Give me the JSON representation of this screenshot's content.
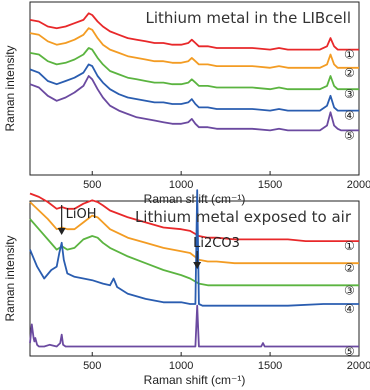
{
  "chart_data": [
    {
      "type": "line",
      "title": "Lithium metal in the LIBcell",
      "xlabel": "Raman shift (cm⁻¹)",
      "ylabel": "Raman intensity",
      "xlim": [
        150,
        2000
      ],
      "xticks": [
        500,
        1000,
        1500,
        2000
      ],
      "yticks": false,
      "ylim": [
        0,
        1
      ],
      "series": [
        {
          "name": "①",
          "color": "#e8282a",
          "x": [
            150,
            200,
            250,
            300,
            350,
            400,
            450,
            480,
            500,
            530,
            560,
            600,
            650,
            700,
            750,
            800,
            850,
            900,
            950,
            1000,
            1040,
            1060,
            1080,
            1100,
            1150,
            1200,
            1300,
            1400,
            1500,
            1550,
            1600,
            1700,
            1780,
            1820,
            1840,
            1860,
            1880,
            1900,
            2000
          ],
          "y": [
            0.94,
            0.93,
            0.9,
            0.89,
            0.9,
            0.92,
            0.94,
            0.98,
            0.97,
            0.93,
            0.9,
            0.87,
            0.85,
            0.83,
            0.82,
            0.81,
            0.8,
            0.8,
            0.79,
            0.79,
            0.8,
            0.82,
            0.8,
            0.78,
            0.78,
            0.77,
            0.77,
            0.77,
            0.76,
            0.77,
            0.76,
            0.76,
            0.76,
            0.78,
            0.83,
            0.78,
            0.76,
            0.76,
            0.76
          ]
        },
        {
          "name": "②",
          "color": "#f39c23",
          "x": [
            150,
            200,
            250,
            300,
            350,
            400,
            450,
            480,
            500,
            530,
            560,
            600,
            650,
            700,
            750,
            800,
            850,
            900,
            950,
            1000,
            1040,
            1060,
            1080,
            1100,
            1150,
            1200,
            1300,
            1400,
            1500,
            1550,
            1600,
            1700,
            1780,
            1820,
            1840,
            1860,
            1880,
            1900,
            2000
          ],
          "y": [
            0.86,
            0.85,
            0.81,
            0.79,
            0.8,
            0.82,
            0.85,
            0.89,
            0.88,
            0.83,
            0.79,
            0.76,
            0.74,
            0.72,
            0.71,
            0.7,
            0.69,
            0.69,
            0.68,
            0.68,
            0.69,
            0.71,
            0.69,
            0.67,
            0.67,
            0.66,
            0.66,
            0.66,
            0.65,
            0.66,
            0.65,
            0.65,
            0.65,
            0.67,
            0.73,
            0.67,
            0.65,
            0.65,
            0.65
          ]
        },
        {
          "name": "③",
          "color": "#5bb440",
          "x": [
            150,
            200,
            250,
            300,
            350,
            400,
            450,
            480,
            500,
            530,
            560,
            600,
            650,
            700,
            750,
            800,
            850,
            900,
            950,
            1000,
            1040,
            1060,
            1080,
            1100,
            1150,
            1200,
            1300,
            1400,
            1500,
            1550,
            1600,
            1700,
            1780,
            1820,
            1840,
            1860,
            1880,
            1900,
            2000
          ],
          "y": [
            0.74,
            0.73,
            0.69,
            0.67,
            0.68,
            0.7,
            0.73,
            0.77,
            0.76,
            0.71,
            0.67,
            0.63,
            0.61,
            0.59,
            0.58,
            0.57,
            0.56,
            0.56,
            0.55,
            0.55,
            0.56,
            0.58,
            0.56,
            0.54,
            0.54,
            0.53,
            0.53,
            0.53,
            0.52,
            0.53,
            0.52,
            0.52,
            0.52,
            0.54,
            0.6,
            0.54,
            0.52,
            0.52,
            0.52
          ]
        },
        {
          "name": "④",
          "color": "#2a5db0",
          "x": [
            150,
            200,
            250,
            300,
            350,
            400,
            450,
            480,
            500,
            530,
            560,
            600,
            650,
            700,
            750,
            800,
            850,
            900,
            950,
            1000,
            1040,
            1060,
            1080,
            1100,
            1150,
            1200,
            1300,
            1400,
            1500,
            1550,
            1600,
            1700,
            1780,
            1820,
            1840,
            1860,
            1880,
            1900,
            2000
          ],
          "y": [
            0.64,
            0.62,
            0.57,
            0.55,
            0.57,
            0.59,
            0.62,
            0.67,
            0.66,
            0.6,
            0.56,
            0.52,
            0.49,
            0.47,
            0.46,
            0.45,
            0.44,
            0.44,
            0.43,
            0.43,
            0.44,
            0.46,
            0.43,
            0.41,
            0.41,
            0.4,
            0.4,
            0.4,
            0.39,
            0.4,
            0.39,
            0.39,
            0.39,
            0.42,
            0.48,
            0.41,
            0.39,
            0.39,
            0.39
          ]
        },
        {
          "name": "⑤",
          "color": "#6b4aa0",
          "x": [
            150,
            200,
            250,
            300,
            350,
            400,
            450,
            480,
            500,
            530,
            560,
            600,
            650,
            700,
            750,
            800,
            850,
            900,
            950,
            1000,
            1040,
            1060,
            1080,
            1100,
            1150,
            1200,
            1300,
            1400,
            1500,
            1550,
            1600,
            1700,
            1780,
            1820,
            1840,
            1860,
            1880,
            1900,
            2000
          ],
          "y": [
            0.55,
            0.53,
            0.48,
            0.45,
            0.47,
            0.5,
            0.54,
            0.6,
            0.58,
            0.52,
            0.47,
            0.42,
            0.39,
            0.37,
            0.35,
            0.34,
            0.33,
            0.32,
            0.31,
            0.31,
            0.32,
            0.34,
            0.31,
            0.29,
            0.29,
            0.28,
            0.28,
            0.28,
            0.27,
            0.28,
            0.27,
            0.27,
            0.27,
            0.3,
            0.38,
            0.3,
            0.28,
            0.27,
            0.27
          ]
        }
      ]
    },
    {
      "type": "line",
      "title": "Lithium metal exposed to air",
      "xlabel": "Raman shift (cm⁻¹)",
      "ylabel": "Raman intensity",
      "xlim": [
        150,
        2000
      ],
      "xticks": [
        500,
        1000,
        1500,
        2000
      ],
      "yticks": false,
      "ylim": [
        0,
        1
      ],
      "annotations": [
        {
          "text": "LiOH",
          "x": 328
        },
        {
          "text": "Li2CO3",
          "x": 1090
        }
      ],
      "series": [
        {
          "name": "①",
          "color": "#e8282a",
          "x": [
            150,
            200,
            250,
            300,
            330,
            360,
            400,
            450,
            500,
            530,
            560,
            600,
            700,
            800,
            900,
            1000,
            1050,
            1100,
            1150,
            1200,
            1300,
            1400,
            1500,
            1600,
            1700,
            1800,
            1900,
            2000
          ],
          "y": [
            0.95,
            0.93,
            0.9,
            0.86,
            0.87,
            0.86,
            0.86,
            0.89,
            0.91,
            0.9,
            0.88,
            0.85,
            0.81,
            0.78,
            0.75,
            0.74,
            0.73,
            0.7,
            0.69,
            0.69,
            0.68,
            0.68,
            0.68,
            0.68,
            0.67,
            0.67,
            0.67,
            0.67
          ]
        },
        {
          "name": "②",
          "color": "#f39c23",
          "x": [
            150,
            200,
            250,
            300,
            330,
            360,
            400,
            450,
            500,
            530,
            560,
            600,
            700,
            800,
            900,
            1000,
            1050,
            1100,
            1150,
            1200,
            1300,
            1400,
            1500,
            1600,
            1700,
            1800,
            1900,
            2000
          ],
          "y": [
            0.9,
            0.85,
            0.8,
            0.74,
            0.75,
            0.74,
            0.74,
            0.78,
            0.82,
            0.81,
            0.78,
            0.74,
            0.69,
            0.66,
            0.63,
            0.61,
            0.6,
            0.56,
            0.55,
            0.55,
            0.54,
            0.54,
            0.54,
            0.54,
            0.54,
            0.54,
            0.54,
            0.54
          ]
        },
        {
          "name": "③",
          "color": "#5bb440",
          "x": [
            150,
            200,
            250,
            300,
            330,
            360,
            400,
            450,
            500,
            530,
            560,
            600,
            700,
            800,
            900,
            1000,
            1050,
            1100,
            1150,
            1200,
            1300,
            1400,
            1500,
            1600,
            1700,
            1800,
            1900,
            2000
          ],
          "y": [
            0.8,
            0.74,
            0.68,
            0.62,
            0.64,
            0.62,
            0.63,
            0.68,
            0.7,
            0.69,
            0.66,
            0.63,
            0.58,
            0.54,
            0.5,
            0.47,
            0.45,
            0.42,
            0.41,
            0.41,
            0.41,
            0.41,
            0.41,
            0.41,
            0.41,
            0.41,
            0.41,
            0.41
          ]
        },
        {
          "name": "④",
          "color": "#2a5db0",
          "x": [
            150,
            190,
            230,
            270,
            300,
            315,
            328,
            340,
            360,
            400,
            450,
            500,
            560,
            600,
            620,
            640,
            700,
            800,
            900,
            1000,
            1050,
            1080,
            1090,
            1100,
            1120,
            1200,
            1400,
            1600,
            1800,
            2000
          ],
          "y": [
            0.62,
            0.52,
            0.45,
            0.5,
            0.52,
            0.6,
            0.66,
            0.56,
            0.48,
            0.46,
            0.45,
            0.44,
            0.42,
            0.41,
            0.45,
            0.4,
            0.36,
            0.33,
            0.31,
            0.31,
            0.3,
            0.3,
            0.97,
            0.3,
            0.29,
            0.29,
            0.29,
            0.29,
            0.3,
            0.3
          ]
        },
        {
          "name": "⑤",
          "color": "#6b4aa0",
          "x": [
            150,
            160,
            170,
            175,
            180,
            190,
            200,
            230,
            260,
            300,
            320,
            328,
            336,
            350,
            400,
            500,
            600,
            700,
            800,
            900,
            1000,
            1050,
            1080,
            1090,
            1100,
            1120,
            1200,
            1400,
            1450,
            1460,
            1470,
            1600,
            1800,
            2000
          ],
          "y": [
            0.07,
            0.18,
            0.1,
            0.08,
            0.1,
            0.06,
            0.05,
            0.05,
            0.06,
            0.05,
            0.07,
            0.12,
            0.06,
            0.05,
            0.05,
            0.05,
            0.05,
            0.05,
            0.05,
            0.05,
            0.05,
            0.05,
            0.05,
            0.29,
            0.05,
            0.05,
            0.05,
            0.05,
            0.05,
            0.07,
            0.05,
            0.05,
            0.05,
            0.05
          ]
        }
      ]
    }
  ]
}
